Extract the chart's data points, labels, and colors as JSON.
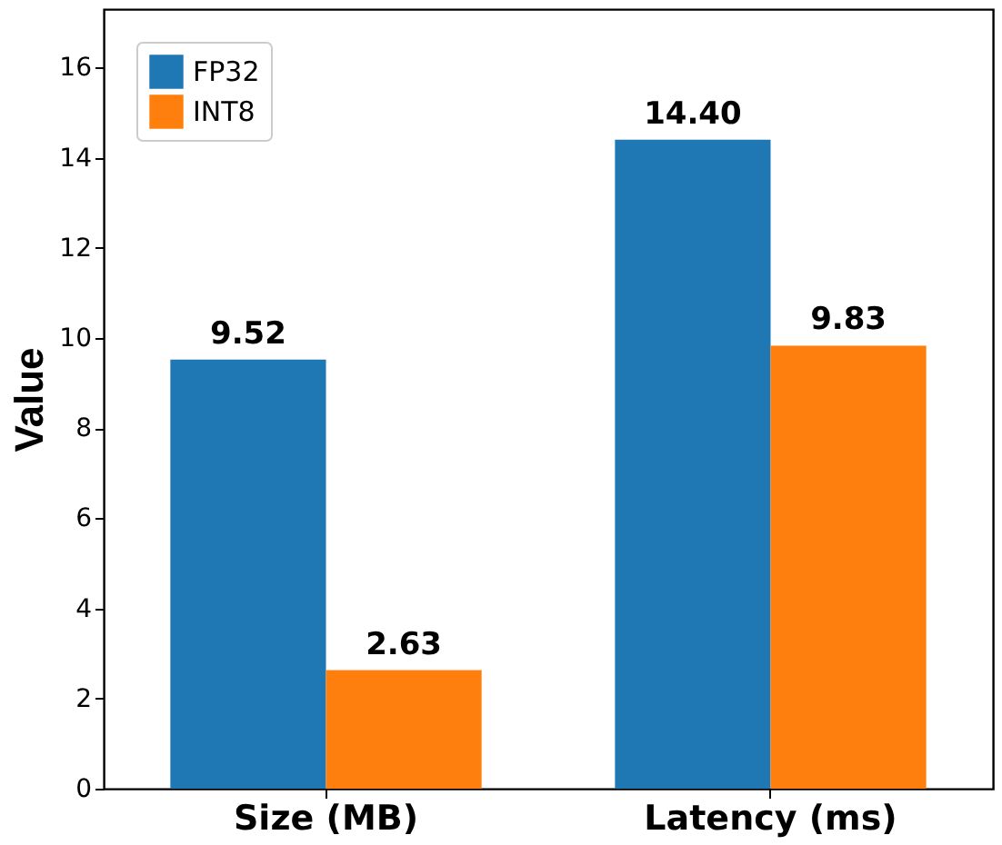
{
  "chart_data": {
    "type": "bar",
    "categories": [
      "Size (MB)",
      "Latency (ms)"
    ],
    "ylabel": "Value",
    "series": [
      {
        "name": "FP32",
        "color": "#1f77b4",
        "values": [
          9.52,
          14.4
        ],
        "value_labels": [
          "9.52",
          "14.40"
        ]
      },
      {
        "name": "INT8",
        "color": "#ff7f0e",
        "values": [
          2.63,
          9.83
        ],
        "value_labels": [
          "2.63",
          "9.83"
        ]
      }
    ],
    "ylim": [
      0,
      17.3
    ],
    "yticks": [
      0,
      2,
      4,
      6,
      8,
      10,
      12,
      14,
      16
    ],
    "legend": "top left",
    "grid": false
  }
}
